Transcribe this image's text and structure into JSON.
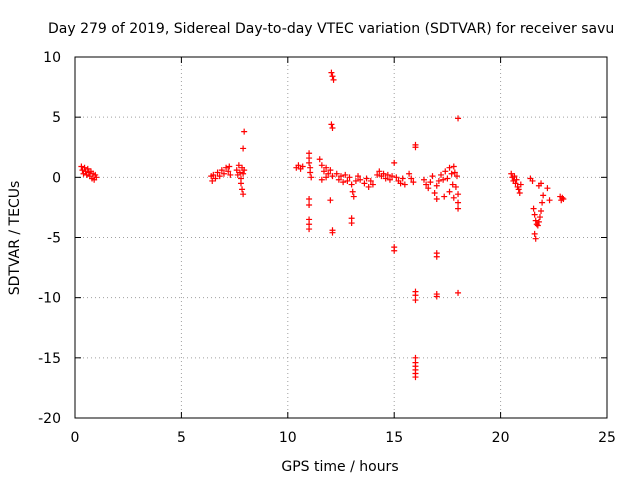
{
  "chart_data": {
    "type": "scatter",
    "title": "Day 279 of 2019, Sidereal Day-to-day VTEC variation (SDTVAR) for receiver savu",
    "xlabel": "GPS time / hours",
    "ylabel": "SDTVAR / TECUs",
    "xlim": [
      0,
      25
    ],
    "ylim": [
      -20,
      10
    ],
    "xticks": [
      0,
      5,
      10,
      15,
      20,
      25
    ],
    "yticks": [
      10,
      5,
      0,
      -5,
      -10,
      -15,
      -20
    ],
    "grid": true,
    "marker": "+",
    "series": [
      {
        "name": "SDTVAR",
        "color": "#ff0000",
        "points": [
          [
            0.3,
            0.9
          ],
          [
            0.35,
            0.6
          ],
          [
            0.4,
            0.3
          ],
          [
            0.45,
            0.8
          ],
          [
            0.5,
            0.5
          ],
          [
            0.55,
            0.2
          ],
          [
            0.6,
            0.7
          ],
          [
            0.65,
            0.4
          ],
          [
            0.7,
            0.1
          ],
          [
            0.75,
            0.5
          ],
          [
            0.8,
            -0.1
          ],
          [
            0.85,
            0.3
          ],
          [
            0.9,
            -0.2
          ],
          [
            0.95,
            0.2
          ],
          [
            1.0,
            0.0
          ],
          [
            6.4,
            0.1
          ],
          [
            6.45,
            -0.3
          ],
          [
            6.5,
            0.2
          ],
          [
            6.6,
            -0.1
          ],
          [
            6.7,
            0.4
          ],
          [
            6.8,
            0.1
          ],
          [
            6.9,
            0.6
          ],
          [
            7.0,
            0.3
          ],
          [
            7.1,
            0.8
          ],
          [
            7.2,
            0.5
          ],
          [
            7.25,
            0.9
          ],
          [
            7.3,
            0.2
          ],
          [
            7.6,
            0.6
          ],
          [
            7.65,
            0.2
          ],
          [
            7.7,
            1.0
          ],
          [
            7.75,
            0.4
          ],
          [
            7.8,
            -0.1
          ],
          [
            7.85,
            0.8
          ],
          [
            7.9,
            0.3
          ],
          [
            7.95,
            0.6
          ],
          [
            7.8,
            -0.5
          ],
          [
            7.85,
            -1.0
          ],
          [
            7.9,
            -1.4
          ],
          [
            7.9,
            2.4
          ],
          [
            7.95,
            3.8
          ],
          [
            10.4,
            0.8
          ],
          [
            10.5,
            1.0
          ],
          [
            10.6,
            0.7
          ],
          [
            10.7,
            0.9
          ],
          [
            11.0,
            2.0
          ],
          [
            11.0,
            1.6
          ],
          [
            11.0,
            1.2
          ],
          [
            11.05,
            0.8
          ],
          [
            11.05,
            0.4
          ],
          [
            11.1,
            0.0
          ],
          [
            11.0,
            -1.8
          ],
          [
            11.0,
            -2.3
          ],
          [
            11.0,
            -3.5
          ],
          [
            11.0,
            -3.9
          ],
          [
            11.0,
            -4.3
          ],
          [
            11.5,
            1.5
          ],
          [
            11.6,
            1.0
          ],
          [
            11.7,
            0.5
          ],
          [
            11.8,
            0.8
          ],
          [
            11.9,
            0.3
          ],
          [
            12.0,
            0.6
          ],
          [
            11.6,
            -0.2
          ],
          [
            11.8,
            0.0
          ],
          [
            12.1,
            0.1
          ],
          [
            12.0,
            -1.9
          ],
          [
            12.1,
            -4.4
          ],
          [
            12.1,
            -4.6
          ],
          [
            12.05,
            8.7
          ],
          [
            12.1,
            8.4
          ],
          [
            12.15,
            8.1
          ],
          [
            12.05,
            4.4
          ],
          [
            12.1,
            4.1
          ],
          [
            12.3,
            0.3
          ],
          [
            12.4,
            -0.2
          ],
          [
            12.5,
            0.1
          ],
          [
            12.6,
            -0.4
          ],
          [
            12.7,
            0.2
          ],
          [
            12.8,
            -0.3
          ],
          [
            12.9,
            0.0
          ],
          [
            13.0,
            -0.6
          ],
          [
            13.05,
            -1.2
          ],
          [
            13.1,
            -1.6
          ],
          [
            13.2,
            -0.3
          ],
          [
            13.3,
            0.1
          ],
          [
            13.4,
            -0.2
          ],
          [
            13.6,
            -0.5
          ],
          [
            13.7,
            -0.1
          ],
          [
            13.8,
            -0.8
          ],
          [
            13.9,
            -0.3
          ],
          [
            14.0,
            -0.6
          ],
          [
            13.0,
            -3.4
          ],
          [
            13.0,
            -3.8
          ],
          [
            14.2,
            0.2
          ],
          [
            14.3,
            0.5
          ],
          [
            14.4,
            0.1
          ],
          [
            14.5,
            0.3
          ],
          [
            14.6,
            -0.1
          ],
          [
            14.7,
            0.2
          ],
          [
            14.8,
            -0.2
          ],
          [
            14.9,
            0.1
          ],
          [
            15.0,
            1.2
          ],
          [
            15.1,
            0.0
          ],
          [
            15.2,
            -0.3
          ],
          [
            15.3,
            -0.5
          ],
          [
            15.4,
            -0.1
          ],
          [
            15.5,
            -0.6
          ],
          [
            15.0,
            -5.8
          ],
          [
            15.0,
            -6.1
          ],
          [
            15.7,
            0.3
          ],
          [
            15.8,
            -0.1
          ],
          [
            15.9,
            -0.4
          ],
          [
            16.0,
            2.7
          ],
          [
            16.0,
            2.5
          ],
          [
            16.0,
            -9.5
          ],
          [
            16.0,
            -9.8
          ],
          [
            16.0,
            -10.2
          ],
          [
            16.0,
            -15.0
          ],
          [
            16.0,
            -15.4
          ],
          [
            16.0,
            -15.7
          ],
          [
            16.0,
            -16.0
          ],
          [
            16.0,
            -16.3
          ],
          [
            16.0,
            -16.6
          ],
          [
            16.4,
            -0.2
          ],
          [
            16.5,
            -0.6
          ],
          [
            16.6,
            -0.9
          ],
          [
            16.7,
            -0.4
          ],
          [
            16.8,
            0.1
          ],
          [
            16.9,
            -1.3
          ],
          [
            17.0,
            -0.7
          ],
          [
            17.0,
            -1.8
          ],
          [
            17.0,
            -6.3
          ],
          [
            17.0,
            -6.6
          ],
          [
            17.0,
            -9.7
          ],
          [
            17.0,
            -9.9
          ],
          [
            17.1,
            -0.3
          ],
          [
            17.2,
            0.2
          ],
          [
            17.3,
            -0.2
          ],
          [
            17.35,
            -1.6
          ],
          [
            17.4,
            0.5
          ],
          [
            17.5,
            -0.1
          ],
          [
            17.6,
            0.8
          ],
          [
            17.6,
            -1.2
          ],
          [
            17.7,
            0.3
          ],
          [
            17.75,
            -0.6
          ],
          [
            17.8,
            0.9
          ],
          [
            17.8,
            -1.7
          ],
          [
            17.85,
            0.4
          ],
          [
            17.9,
            -0.8
          ],
          [
            17.95,
            0.1
          ],
          [
            18.0,
            -1.4
          ],
          [
            18.0,
            -2.1
          ],
          [
            18.0,
            -2.6
          ],
          [
            18.0,
            4.9
          ],
          [
            18.0,
            -9.6
          ],
          [
            20.5,
            0.3
          ],
          [
            20.55,
            0.0
          ],
          [
            20.6,
            -0.3
          ],
          [
            20.65,
            0.1
          ],
          [
            20.7,
            -0.5
          ],
          [
            20.75,
            -0.2
          ],
          [
            20.8,
            -0.8
          ],
          [
            20.85,
            -1.0
          ],
          [
            20.9,
            -1.3
          ],
          [
            20.95,
            -0.6
          ],
          [
            21.4,
            -0.1
          ],
          [
            21.5,
            -0.3
          ],
          [
            21.55,
            -2.6
          ],
          [
            21.6,
            -3.1
          ],
          [
            21.65,
            -3.6
          ],
          [
            21.7,
            -3.9
          ],
          [
            21.75,
            -4.0
          ],
          [
            21.8,
            -3.7
          ],
          [
            21.85,
            -3.3
          ],
          [
            21.9,
            -2.8
          ],
          [
            21.95,
            -2.1
          ],
          [
            22.0,
            -1.5
          ],
          [
            21.8,
            -0.7
          ],
          [
            21.9,
            -0.5
          ],
          [
            21.6,
            -4.7
          ],
          [
            21.65,
            -5.1
          ],
          [
            22.2,
            -0.9
          ],
          [
            22.3,
            -1.9
          ],
          [
            22.8,
            -1.6
          ],
          [
            22.85,
            -1.9
          ],
          [
            22.9,
            -1.7
          ],
          [
            22.95,
            -1.8
          ]
        ]
      }
    ]
  }
}
